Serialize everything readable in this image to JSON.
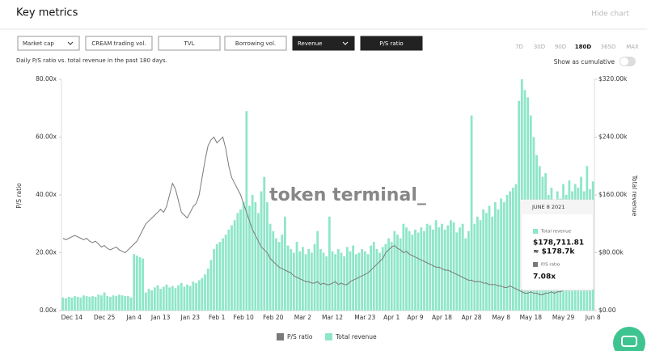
{
  "header": {
    "title": "Key metrics",
    "hide": "Hide chart"
  },
  "metric_buttons": [
    "Market cap",
    "CREAM trading vol.",
    "TVL",
    "Borrowing vol.",
    "Revenue",
    "P/S ratio"
  ],
  "time_ranges": [
    "7D",
    "30D",
    "90D",
    "180D",
    "365D",
    "MAX"
  ],
  "subtitle": "Daily P/S ratio vs. total revenue in the past 180 days.",
  "cumulative_label": "Show as cumulative",
  "watermark": "token terminal_",
  "chart_data": {
    "type": "combo",
    "ylabel": "P/S ratio",
    "y2label": "Total revenue",
    "categories": [
      null,
      null,
      null,
      "Dec 14",
      null,
      null,
      null,
      null,
      null,
      null,
      null,
      null,
      null,
      null,
      "Dec 25",
      null,
      null,
      null,
      null,
      null,
      null,
      null,
      null,
      null,
      "Jan 4",
      null,
      null,
      null,
      null,
      null,
      null,
      null,
      null,
      "Jan 13",
      null,
      null,
      null,
      null,
      null,
      null,
      null,
      null,
      null,
      "Jan 23",
      null,
      null,
      null,
      null,
      null,
      null,
      null,
      null,
      "Feb 1",
      null,
      null,
      null,
      null,
      null,
      null,
      null,
      null,
      "Feb 10",
      null,
      null,
      null,
      null,
      null,
      null,
      null,
      null,
      null,
      "Feb 20",
      null,
      null,
      null,
      null,
      null,
      null,
      null,
      null,
      null,
      "Mar 2",
      null,
      null,
      null,
      null,
      null,
      null,
      null,
      null,
      null,
      "Mar 12",
      null,
      null,
      null,
      null,
      null,
      null,
      null,
      null,
      null,
      null,
      "Mar 23",
      null,
      null,
      null,
      null,
      null,
      null,
      null,
      null,
      "Apr 1",
      null,
      null,
      null,
      null,
      null,
      null,
      null,
      "Apr 9",
      null,
      null,
      null,
      null,
      null,
      null,
      null,
      null,
      "Apr 18",
      null,
      null,
      null,
      null,
      null,
      null,
      null,
      null,
      null,
      "Apr 28",
      null,
      null,
      null,
      null,
      null,
      null,
      null,
      null,
      null,
      "May 8",
      null,
      null,
      null,
      null,
      null,
      null,
      null,
      null,
      null,
      "May 18",
      null,
      null,
      null,
      null,
      null,
      null,
      null,
      null,
      null,
      null,
      "May 29",
      null,
      null,
      null,
      null,
      null,
      null,
      null,
      null,
      null,
      "Jun 8"
    ],
    "series": [
      {
        "name": "P/S ratio",
        "type": "line",
        "color": "#7a7a7a",
        "values": [
          25,
          24.5,
          25,
          25.5,
          26,
          25.5,
          25,
          24.5,
          25,
          24,
          23.5,
          24,
          23,
          22,
          22.5,
          21.5,
          21,
          21.5,
          22,
          21,
          20.5,
          20,
          21,
          22,
          23,
          24,
          26,
          28,
          30,
          31,
          32,
          33,
          34,
          35,
          34,
          36,
          40,
          44,
          42,
          38,
          34,
          33,
          32,
          34,
          36,
          37,
          40,
          46,
          52,
          57,
          59,
          60,
          58,
          59,
          60,
          56,
          50,
          46,
          44,
          42,
          40,
          37,
          34,
          31,
          28,
          26,
          24,
          22,
          21,
          20,
          18,
          17,
          16,
          15,
          14.5,
          14,
          13.5,
          13,
          12,
          11.5,
          11,
          10.5,
          10,
          10,
          9.5,
          9.5,
          10,
          9,
          9.5,
          9,
          9,
          9.5,
          10,
          9,
          9.5,
          9,
          9,
          10,
          10.5,
          11,
          11.5,
          12,
          12.5,
          13,
          14,
          15,
          16,
          17,
          18,
          20,
          21,
          22,
          22.5,
          21.5,
          21,
          20,
          20.5,
          19.5,
          19,
          18.5,
          18,
          17.5,
          17,
          16.5,
          16,
          15.5,
          15,
          15,
          14.5,
          14,
          14,
          13.5,
          13,
          12.5,
          12,
          11.5,
          11,
          10.5,
          10.5,
          10,
          10,
          10,
          9.5,
          9.5,
          9,
          9,
          9,
          8.5,
          8.5,
          8,
          8,
          8.5,
          8,
          7.5,
          7,
          6.5,
          6,
          6,
          6.5,
          6,
          6,
          5.5,
          5.5,
          6,
          6,
          6.5,
          6,
          6.5,
          6.5,
          7,
          7,
          7.5,
          7,
          7.5,
          7,
          7.5,
          7.5,
          7,
          7.2,
          7.08
        ]
      },
      {
        "name": "Total revenue",
        "type": "bar",
        "color": "#8ee6c9",
        "axis": "y2",
        "values": [
          18000,
          17000,
          19000,
          18000,
          20000,
          19000,
          18000,
          21000,
          20000,
          19000,
          20000,
          19000,
          22000,
          21000,
          25000,
          20000,
          19000,
          21000,
          20000,
          22000,
          21000,
          20000,
          20000,
          18000,
          78000,
          76000,
          74000,
          72000,
          25000,
          30000,
          28000,
          32000,
          35000,
          30000,
          33000,
          36000,
          32000,
          34000,
          31000,
          35000,
          38000,
          33000,
          36000,
          34000,
          40000,
          38000,
          42000,
          45000,
          50000,
          58000,
          70000,
          85000,
          92000,
          95000,
          100000,
          105000,
          112000,
          118000,
          125000,
          135000,
          140000,
          150000,
          276000,
          145000,
          160000,
          150000,
          135000,
          165000,
          185000,
          150000,
          120000,
          110000,
          100000,
          95000,
          105000,
          130000,
          90000,
          85000,
          80000,
          95000,
          82000,
          88000,
          78000,
          85000,
          80000,
          92000,
          110000,
          85000,
          80000,
          75000,
          130000,
          82000,
          78000,
          85000,
          80000,
          75000,
          88000,
          82000,
          90000,
          78000,
          80000,
          85000,
          82000,
          78000,
          90000,
          95000,
          85000,
          80000,
          88000,
          92000,
          100000,
          95000,
          110000,
          105000,
          100000,
          120000,
          115000,
          110000,
          105000,
          112000,
          108000,
          115000,
          110000,
          120000,
          118000,
          112000,
          125000,
          115000,
          120000,
          112000,
          118000,
          125000,
          122000,
          108000,
          115000,
          120000,
          100000,
          110000,
          270000,
          120000,
          130000,
          125000,
          140000,
          135000,
          145000,
          130000,
          150000,
          140000,
          155000,
          150000,
          160000,
          165000,
          170000,
          175000,
          290000,
          320000,
          305000,
          295000,
          270000,
          240000,
          215000,
          200000,
          185000,
          190000,
          160000,
          170000,
          150000,
          165000,
          155000,
          175000,
          160000,
          180000,
          165000,
          175000,
          170000,
          185000,
          165000,
          200000,
          168000,
          178711.81
        ]
      }
    ],
    "ylim": [
      0,
      80
    ],
    "yticks": [
      {
        "value": 0,
        "label": "0.00x"
      },
      {
        "value": 20,
        "label": "20.00x"
      },
      {
        "value": 40,
        "label": "40.00x"
      },
      {
        "value": 60,
        "label": "60.00x"
      },
      {
        "value": 80,
        "label": "80.00x"
      }
    ],
    "y2lim": [
      0,
      320000
    ],
    "y2ticks": [
      {
        "value": 0,
        "label": "$0.00"
      },
      {
        "value": 80000,
        "label": "$80.00k"
      },
      {
        "value": 160000,
        "label": "$160.00k"
      },
      {
        "value": 240000,
        "label": "$240.00k"
      },
      {
        "value": 320000,
        "label": "$320.00k"
      }
    ],
    "grid": false
  },
  "tooltip": {
    "title": "JUNE 8 2021",
    "revenue_label": "$178,711.81",
    "revenue_approx": "≈ $178.7k",
    "ratio_label": "7.08x"
  }
}
